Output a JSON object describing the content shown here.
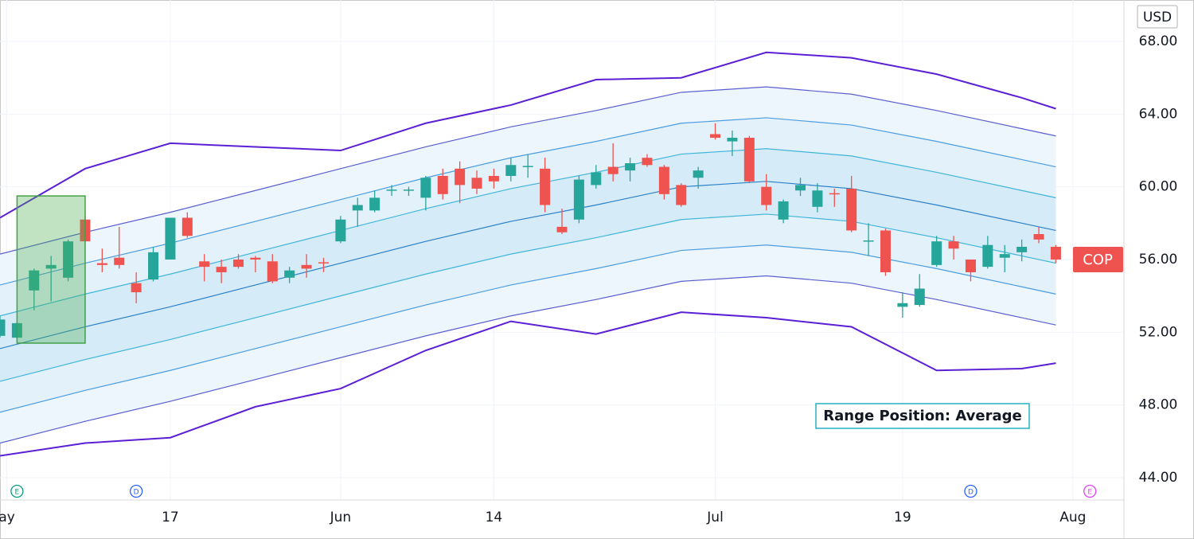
{
  "chart_data": {
    "type": "candlestick",
    "currency": "USD",
    "annotation": "Range Position: Average",
    "last_price_label": {
      "text": "COP",
      "value": 56.0,
      "color": "#ef5350"
    },
    "up_color": "#26a69a",
    "down_color": "#ef5350",
    "grid": true,
    "xlim": [
      0,
      66
    ],
    "ylim": [
      42.77,
      70.28
    ],
    "yticks": [
      {
        "value": 44,
        "label": "44.00"
      },
      {
        "value": 48,
        "label": "48.00"
      },
      {
        "value": 52,
        "label": "52.00"
      },
      {
        "value": 56,
        "label": "56.00"
      },
      {
        "value": 60,
        "label": "60.00"
      },
      {
        "value": 64,
        "label": "64.00"
      },
      {
        "value": 68,
        "label": "68.00"
      }
    ],
    "xticks": [
      {
        "value": 0.4,
        "label": "ay"
      },
      {
        "value": 10,
        "label": "17"
      },
      {
        "value": 20,
        "label": "Jun"
      },
      {
        "value": 29,
        "label": "14"
      },
      {
        "value": 42,
        "label": "Jul"
      },
      {
        "value": 53,
        "label": "19"
      },
      {
        "value": 63,
        "label": "Aug"
      }
    ],
    "x": [
      0,
      1,
      2,
      3,
      4,
      5,
      6,
      7,
      8,
      9,
      10,
      11,
      12,
      13,
      14,
      15,
      16,
      17,
      18,
      19,
      20,
      21,
      22,
      23,
      24,
      25,
      26,
      27,
      28,
      29,
      30,
      31,
      32,
      33,
      34,
      35,
      36,
      37,
      38,
      39,
      40,
      41,
      42,
      43,
      44,
      45,
      46,
      47,
      48,
      49,
      50,
      51,
      52,
      53,
      54,
      55,
      56,
      57,
      58,
      59,
      60,
      61,
      62
    ],
    "open": [
      51.8,
      51.7,
      54.3,
      55.5,
      55.0,
      58.2,
      55.8,
      56.1,
      54.7,
      54.9,
      56.0,
      58.3,
      55.9,
      55.6,
      56.0,
      56.1,
      55.9,
      55.0,
      55.7,
      55.85,
      57.0,
      58.7,
      58.7,
      59.8,
      59.8,
      59.4,
      60.6,
      61.0,
      60.5,
      60.6,
      60.6,
      61.1,
      61.0,
      57.8,
      58.2,
      60.1,
      61.1,
      60.9,
      61.6,
      61.1,
      60.1,
      60.5,
      62.9,
      62.5,
      62.7,
      60.0,
      58.2,
      59.8,
      58.9,
      59.65,
      59.9,
      57.0,
      57.6,
      53.4,
      53.5,
      55.7,
      57.0,
      56.0,
      55.6,
      56.1,
      56.4,
      57.4,
      56.7
    ],
    "high": [
      52.9,
      52.6,
      55.5,
      56.2,
      57.1,
      58.4,
      56.6,
      57.8,
      55.3,
      56.7,
      58.3,
      58.6,
      56.3,
      56.0,
      56.3,
      56.2,
      56.3,
      55.6,
      56.3,
      56.1,
      58.4,
      59.4,
      59.8,
      60.1,
      60.0,
      60.6,
      61.0,
      61.4,
      60.9,
      61.0,
      61.6,
      61.8,
      61.6,
      58.8,
      60.6,
      61.2,
      62.4,
      61.6,
      61.8,
      61.2,
      60.2,
      61.1,
      63.5,
      63.1,
      62.8,
      60.7,
      59.3,
      60.5,
      60.2,
      59.9,
      60.6,
      58.0,
      57.7,
      54.2,
      55.2,
      57.3,
      57.3,
      56.0,
      57.3,
      56.8,
      57.1,
      57.8,
      56.8
    ],
    "low": [
      51.7,
      51.5,
      53.2,
      53.7,
      54.8,
      57.0,
      55.3,
      55.5,
      53.6,
      54.8,
      56.0,
      57.2,
      54.8,
      54.7,
      55.5,
      55.3,
      54.7,
      54.7,
      55.0,
      55.3,
      56.9,
      57.8,
      58.6,
      59.5,
      59.5,
      58.7,
      59.3,
      59.1,
      59.6,
      59.9,
      60.3,
      60.5,
      58.6,
      57.4,
      58.0,
      59.9,
      60.3,
      60.3,
      61.1,
      59.3,
      58.9,
      59.9,
      62.6,
      61.7,
      60.2,
      58.7,
      58.0,
      59.5,
      58.6,
      58.9,
      57.5,
      56.2,
      55.1,
      52.8,
      53.4,
      55.6,
      56.0,
      54.8,
      55.5,
      55.3,
      55.9,
      56.9,
      55.8
    ],
    "close": [
      52.7,
      52.5,
      55.4,
      55.7,
      57.0,
      57.0,
      55.7,
      55.7,
      54.2,
      56.4,
      58.3,
      57.3,
      55.6,
      55.3,
      55.6,
      56.0,
      54.8,
      55.4,
      55.5,
      55.8,
      58.2,
      59.0,
      59.4,
      59.85,
      59.85,
      60.5,
      59.6,
      60.1,
      59.9,
      60.3,
      61.2,
      61.15,
      59.0,
      57.5,
      60.4,
      60.8,
      60.7,
      61.3,
      61.2,
      59.6,
      59.0,
      60.9,
      62.7,
      62.7,
      60.3,
      59.0,
      59.2,
      60.1,
      59.8,
      59.6,
      57.6,
      57.05,
      55.3,
      53.6,
      54.4,
      57.0,
      56.6,
      55.3,
      56.8,
      56.3,
      56.7,
      57.1,
      56.0
    ],
    "band_x": [
      0,
      5,
      10,
      15,
      20,
      25,
      30,
      35,
      40,
      45,
      50,
      55,
      60,
      62
    ],
    "bands": [
      {
        "color": "#5b1fd6",
        "values": [
          58.3,
          61.0,
          62.4,
          62.2,
          62.0,
          63.5,
          64.5,
          65.9,
          66.0,
          67.4,
          67.1,
          66.2,
          64.9,
          64.3
        ]
      },
      {
        "color": "#5a5fd0",
        "values": [
          56.3,
          57.5,
          58.6,
          59.8,
          61.0,
          62.2,
          63.3,
          64.2,
          65.2,
          65.5,
          65.1,
          64.2,
          63.2,
          62.8
        ]
      },
      {
        "color": "#4a9de0",
        "values": [
          54.6,
          55.8,
          56.9,
          58.1,
          59.3,
          60.5,
          61.6,
          62.5,
          63.5,
          63.8,
          63.4,
          62.5,
          61.5,
          61.1
        ]
      },
      {
        "color": "#3fb5d9",
        "values": [
          52.9,
          54.1,
          55.2,
          56.4,
          57.6,
          58.8,
          59.9,
          60.8,
          61.8,
          62.1,
          61.7,
          60.8,
          59.8,
          59.4
        ]
      },
      {
        "color": "#2a80c8",
        "values": [
          51.1,
          52.3,
          53.4,
          54.6,
          55.8,
          57.0,
          58.1,
          59.0,
          60.0,
          60.3,
          59.9,
          59.0,
          58.0,
          57.6
        ]
      },
      {
        "color": "#3fb5d9",
        "values": [
          49.3,
          50.5,
          51.6,
          52.8,
          54.0,
          55.2,
          56.3,
          57.2,
          58.2,
          58.5,
          58.1,
          57.2,
          56.2,
          55.8
        ]
      },
      {
        "color": "#4a9de0",
        "values": [
          47.6,
          48.8,
          49.9,
          51.1,
          52.3,
          53.5,
          54.6,
          55.5,
          56.5,
          56.8,
          56.4,
          55.5,
          54.5,
          54.1
        ]
      },
      {
        "color": "#5a5fd0",
        "values": [
          45.9,
          47.1,
          48.2,
          49.4,
          50.6,
          51.8,
          52.9,
          53.8,
          54.8,
          55.1,
          54.7,
          53.8,
          52.8,
          52.4
        ]
      },
      {
        "color": "#5b1fd6",
        "values": [
          45.2,
          45.9,
          46.2,
          47.9,
          48.9,
          51.0,
          52.6,
          51.9,
          53.1,
          52.8,
          52.3,
          49.9,
          50.0,
          50.3
        ]
      }
    ],
    "band_fill_colors": [
      "#eef6fd",
      "#e3f1fb",
      "#d5ebf8"
    ],
    "highlight_box": {
      "x": [
        1,
        5
      ],
      "y": [
        51.4,
        59.5
      ]
    },
    "events": [
      {
        "x": 1,
        "label": "E",
        "color": "#089981"
      },
      {
        "x": 8,
        "label": "D",
        "color": "#2962ff"
      },
      {
        "x": 57,
        "label": "D",
        "color": "#2962ff"
      },
      {
        "x": 64,
        "label": "E",
        "color": "#e040fb"
      }
    ]
  }
}
